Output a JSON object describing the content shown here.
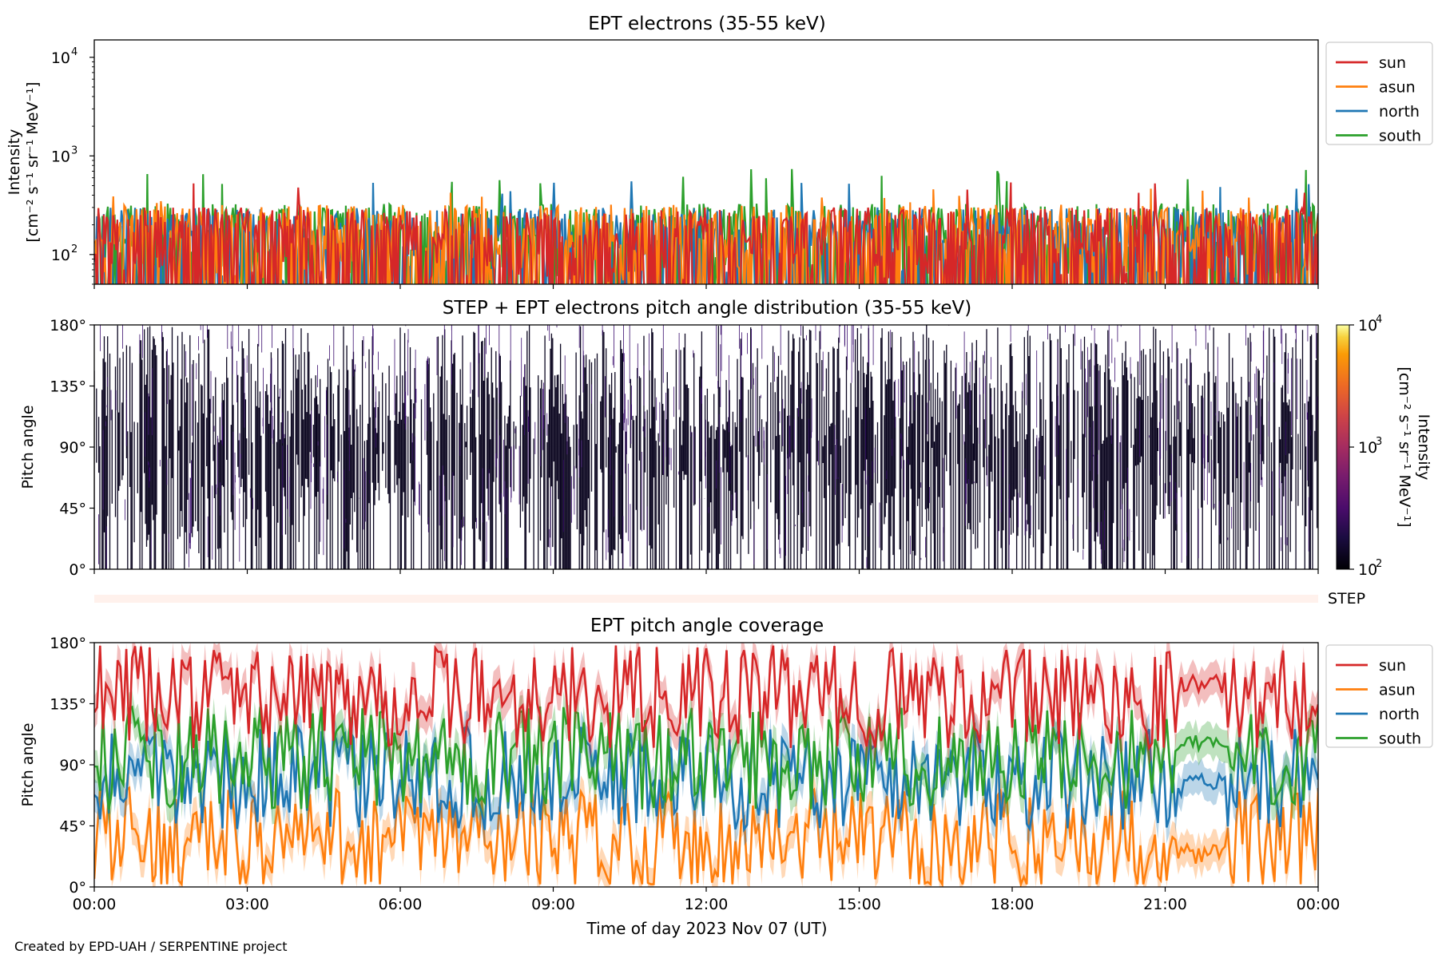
{
  "footer": "Created by EPD-UAH / SERPENTINE project",
  "x_axis": {
    "ticks": [
      "00:00",
      "03:00",
      "06:00",
      "09:00",
      "12:00",
      "15:00",
      "18:00",
      "21:00",
      "00:00"
    ],
    "label": "Time of day 2023 Nov 07 (UT)"
  },
  "colors": {
    "sun": "#d62728",
    "asun": "#ff7f0e",
    "north": "#1f77b4",
    "south": "#2ca02c"
  },
  "chart_data": [
    {
      "type": "line",
      "title": "EPT electrons (35-55 keV)",
      "ylabel_line1": "Intensity",
      "ylabel_line2": "[cm⁻² s⁻¹ sr⁻¹ MeV⁻¹]",
      "yscale": "log",
      "ylim": [
        50,
        15000
      ],
      "y_ticks": [
        {
          "base": "10",
          "exp": "2"
        },
        {
          "base": "10",
          "exp": "3"
        },
        {
          "base": "10",
          "exp": "4"
        }
      ],
      "y_tick_values": [
        100,
        1000,
        10000
      ],
      "xlim_hours": [
        0,
        24
      ],
      "legend": "outside-right",
      "series": [
        {
          "name": "sun",
          "typical_range": [
            50,
            300
          ],
          "max": 560
        },
        {
          "name": "asun",
          "typical_range": [
            50,
            320
          ],
          "max": 470
        },
        {
          "name": "north",
          "typical_range": [
            50,
            300
          ],
          "max": 560
        },
        {
          "name": "south",
          "typical_range": [
            50,
            330
          ],
          "max": 740
        }
      ]
    },
    {
      "type": "heatmap",
      "title": "STEP + EPT electrons pitch angle distribution (35-55 keV)",
      "ylabel": "Pitch angle",
      "y_ticks": [
        "0°",
        "45°",
        "90°",
        "135°",
        "180°"
      ],
      "ylim": [
        0,
        180
      ],
      "xlim_hours": [
        0,
        24
      ],
      "colorbar": {
        "label": "Intensity",
        "units": "[cm⁻² s⁻¹ sr⁻¹ MeV⁻¹]",
        "scale": "log",
        "range": [
          100,
          10000
        ],
        "ticks": [
          {
            "base": "10",
            "exp": "2"
          },
          {
            "base": "10",
            "exp": "3"
          },
          {
            "base": "10",
            "exp": "4"
          }
        ],
        "colormap": "inferno"
      },
      "typical_value": 150
    },
    {
      "type": "bar",
      "label": "STEP",
      "description_color": "#fff1ec"
    },
    {
      "type": "line",
      "title": "EPT pitch angle coverage",
      "ylabel": "Pitch angle",
      "y_ticks": [
        "0°",
        "45°",
        "90°",
        "135°",
        "180°"
      ],
      "ylim": [
        0,
        180
      ],
      "xlim_hours": [
        0,
        24
      ],
      "legend": "outside-right",
      "series": [
        {
          "name": "sun",
          "typical_value": 140,
          "late_segment_value": 150
        },
        {
          "name": "asun",
          "typical_value": 35,
          "late_segment_value": 25
        },
        {
          "name": "north",
          "typical_value": 80,
          "late_segment_value": 75
        },
        {
          "name": "south",
          "typical_value": 95,
          "late_segment_value": 105
        }
      ]
    }
  ]
}
